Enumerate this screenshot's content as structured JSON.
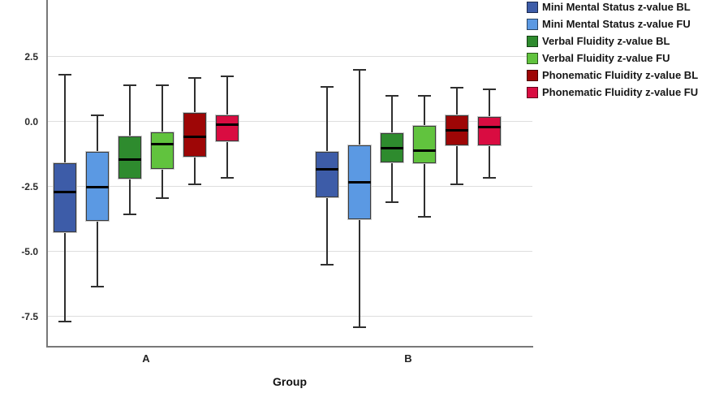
{
  "chart_data": {
    "type": "boxplot",
    "title": "",
    "xlabel": "Group",
    "ylabel": "",
    "categories": [
      "A",
      "B"
    ],
    "y_ticks": [
      2.5,
      0.0,
      -2.5,
      -5.0,
      -7.5
    ],
    "y_tick_labels": [
      "2.5",
      "0.0",
      "-2.5",
      "-5.0",
      "-7.5"
    ],
    "ylim": [
      -8.65,
      4.7
    ],
    "grid": true,
    "legend_position": "top-right",
    "series": [
      {
        "name": "Mini Mental Status z-value BL",
        "color": "#3d5ca8",
        "boxes": [
          {
            "group": "A",
            "whisker_low": -7.7,
            "q1": -4.25,
            "median": -2.7,
            "q3": -1.6,
            "whisker_high": 1.8
          },
          {
            "group": "B",
            "whisker_low": -5.5,
            "q1": -2.9,
            "median": -1.8,
            "q3": -1.15,
            "whisker_high": 1.35
          }
        ]
      },
      {
        "name": "Mini Mental Status z-value FU",
        "color": "#5b99e3",
        "boxes": [
          {
            "group": "A",
            "whisker_low": -6.35,
            "q1": -3.8,
            "median": -2.5,
            "q3": -1.15,
            "whisker_high": 0.25
          },
          {
            "group": "B",
            "whisker_low": -7.9,
            "q1": -3.75,
            "median": -2.3,
            "q3": -0.9,
            "whisker_high": 2.0
          }
        ]
      },
      {
        "name": "Verbal Fluidity z-value BL",
        "color": "#2e8b2e",
        "boxes": [
          {
            "group": "A",
            "whisker_low": -3.55,
            "q1": -2.2,
            "median": -1.45,
            "q3": -0.55,
            "whisker_high": 1.4
          },
          {
            "group": "B",
            "whisker_low": -3.1,
            "q1": -1.55,
            "median": -1.0,
            "q3": -0.45,
            "whisker_high": 1.0
          }
        ]
      },
      {
        "name": "Verbal Fluidity z-value FU",
        "color": "#61c33e",
        "boxes": [
          {
            "group": "A",
            "whisker_low": -2.95,
            "q1": -1.8,
            "median": -0.85,
            "q3": -0.4,
            "whisker_high": 1.4
          },
          {
            "group": "B",
            "whisker_low": -3.65,
            "q1": -1.6,
            "median": -1.1,
            "q3": -0.15,
            "whisker_high": 1.0
          }
        ]
      },
      {
        "name": "Phonematic Fluidity z-value BL",
        "color": "#9e0606",
        "boxes": [
          {
            "group": "A",
            "whisker_low": -2.4,
            "q1": -1.35,
            "median": -0.55,
            "q3": 0.35,
            "whisker_high": 1.7
          },
          {
            "group": "B",
            "whisker_low": -2.4,
            "q1": -0.9,
            "median": -0.3,
            "q3": 0.25,
            "whisker_high": 1.3
          }
        ]
      },
      {
        "name": "Phonematic Fluidity z-value FU",
        "color": "#d90c41",
        "boxes": [
          {
            "group": "A",
            "whisker_low": -2.15,
            "q1": -0.75,
            "median": -0.1,
            "q3": 0.25,
            "whisker_high": 1.75
          },
          {
            "group": "B",
            "whisker_low": -2.15,
            "q1": -0.9,
            "median": -0.2,
            "q3": 0.2,
            "whisker_high": 1.25
          }
        ]
      }
    ]
  }
}
